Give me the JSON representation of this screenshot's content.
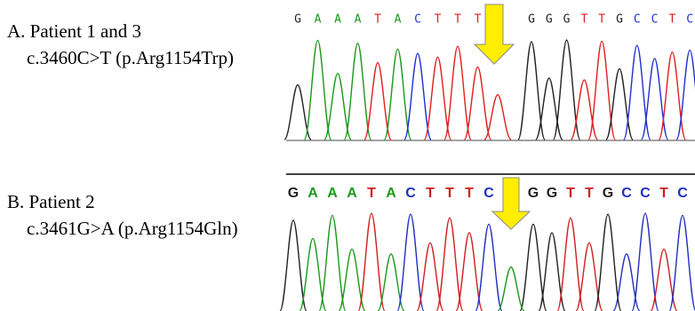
{
  "panels": [
    {
      "label": "A. Patient 1 and 3",
      "mutation": "c.3460C>T (p.Arg1154Trp)",
      "bases_before": [
        "G",
        "A",
        "A",
        "A",
        "T",
        "A",
        "C",
        "T",
        "T",
        "T"
      ],
      "bases_after": [
        "G",
        "G",
        "G",
        "T",
        "T",
        "G",
        "C",
        "C",
        "T",
        "C"
      ]
    },
    {
      "label": "B. Patient 2",
      "mutation": "c.3461G>A (p.Arg1154Gln)",
      "bases_before": [
        "G",
        "A",
        "A",
        "A",
        "T",
        "A",
        "C",
        "T",
        "T",
        "T",
        "C"
      ],
      "bases_after": [
        "G",
        "G",
        "T",
        "T",
        "G",
        "C",
        "C",
        "T",
        "C"
      ]
    }
  ]
}
